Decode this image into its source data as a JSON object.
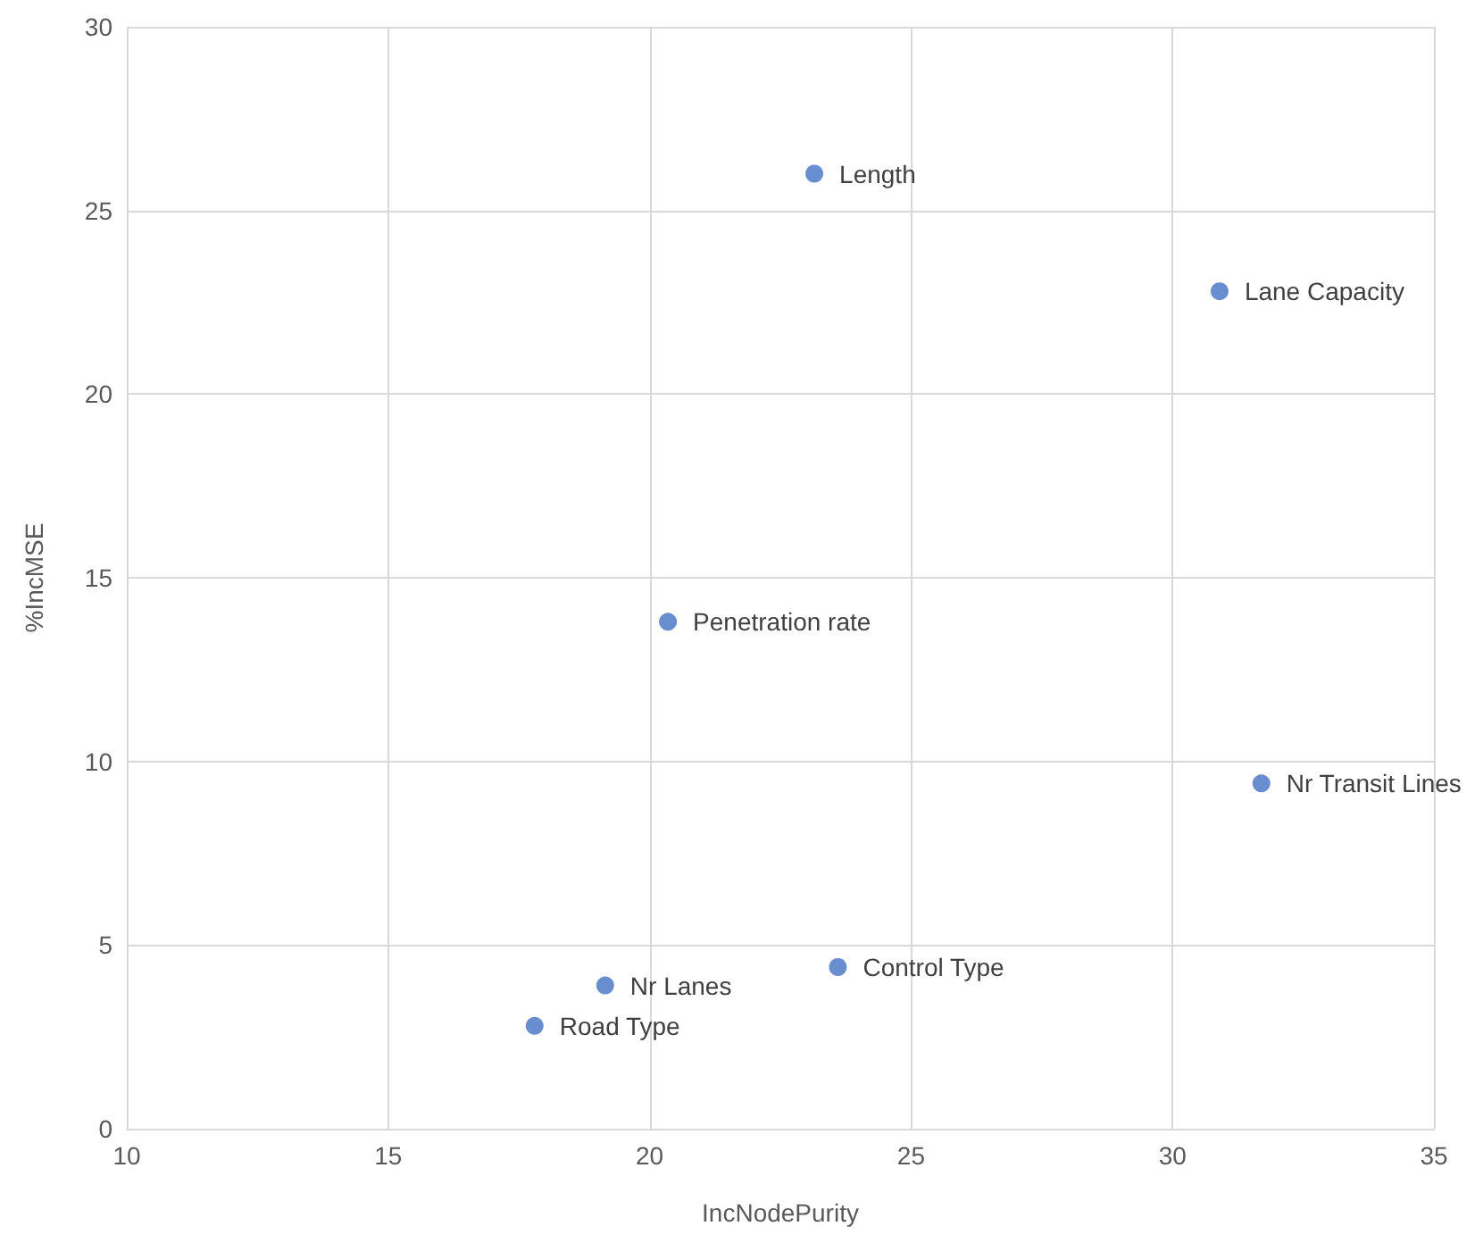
{
  "chart_data": {
    "type": "scatter",
    "xlabel": "IncNodePurity",
    "ylabel": "%IncMSE",
    "x": [
      23.15,
      30.9,
      20.35,
      31.7,
      23.6,
      19.15,
      17.8
    ],
    "values": [
      26.0,
      22.8,
      13.8,
      9.4,
      4.4,
      3.9,
      2.8
    ],
    "color": "#4472c4",
    "marker": "circle",
    "grid": true,
    "xlim": [
      10,
      35
    ],
    "xticks": [
      10,
      15,
      20,
      25,
      30,
      35
    ],
    "ylim": [
      0,
      30
    ],
    "yticks": [
      0,
      5,
      10,
      15,
      20,
      25,
      30
    ],
    "annotations": [
      {
        "text": "Length",
        "x": 23.15,
        "y": 26.0
      },
      {
        "text": "Lane Capacity",
        "x": 30.9,
        "y": 22.8
      },
      {
        "text": "Penetration rate",
        "x": 20.35,
        "y": 13.8
      },
      {
        "text": "Nr Transit Lines",
        "x": 31.7,
        "y": 9.4
      },
      {
        "text": "Control Type",
        "x": 23.6,
        "y": 4.4
      },
      {
        "text": "Nr Lanes",
        "x": 19.15,
        "y": 3.9
      },
      {
        "text": "Road Type",
        "x": 17.8,
        "y": 2.8
      }
    ]
  }
}
